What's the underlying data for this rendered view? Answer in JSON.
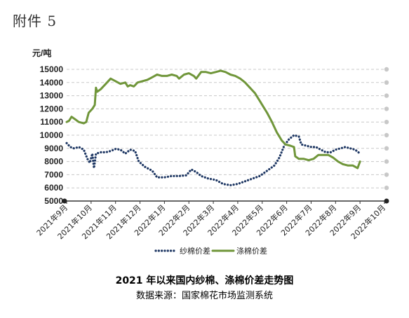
{
  "header": {
    "attachment_label": "附件 5"
  },
  "chart_data": {
    "type": "line",
    "title": "2021 年以来国内纱棉、涤棉价差走势图",
    "source": "数据来源：国家棉花市场监测系统",
    "ylabel": "元/吨",
    "ylim": [
      5000,
      15000
    ],
    "yticks": [
      5000,
      6000,
      7000,
      8000,
      9000,
      10000,
      11000,
      12000,
      13000,
      14000,
      15000
    ],
    "categories": [
      "2021年9月",
      "2021年10月",
      "2021年11月",
      "2021年12月",
      "2022年1月",
      "2022年2月",
      "2022年3月",
      "2022年4月",
      "2022年5月",
      "2022年6月",
      "2022年7月",
      "2022年8月",
      "2022年9月",
      "2022年10月"
    ],
    "grid": true,
    "legend_position": "bottom",
    "series": [
      {
        "name": "纱棉价差",
        "color": "#1f3864",
        "style": "dotted",
        "values": [
          [
            0,
            9400
          ],
          [
            0.15,
            9100
          ],
          [
            0.3,
            9000
          ],
          [
            0.5,
            9100
          ],
          [
            0.7,
            8900
          ],
          [
            0.85,
            8200
          ],
          [
            0.95,
            7900
          ],
          [
            1.05,
            8600
          ],
          [
            1.12,
            7500
          ],
          [
            1.2,
            8600
          ],
          [
            1.4,
            8700
          ],
          [
            1.6,
            8700
          ],
          [
            1.8,
            8800
          ],
          [
            2.0,
            8950
          ],
          [
            2.2,
            8900
          ],
          [
            2.4,
            8600
          ],
          [
            2.6,
            8900
          ],
          [
            2.8,
            8800
          ],
          [
            2.95,
            8000
          ],
          [
            3.2,
            7600
          ],
          [
            3.5,
            7300
          ],
          [
            3.7,
            6800
          ],
          [
            4.0,
            6800
          ],
          [
            4.3,
            6900
          ],
          [
            4.6,
            6900
          ],
          [
            4.9,
            6950
          ],
          [
            5.1,
            7400
          ],
          [
            5.3,
            7200
          ],
          [
            5.5,
            6900
          ],
          [
            5.8,
            6700
          ],
          [
            6.1,
            6600
          ],
          [
            6.4,
            6300
          ],
          [
            6.7,
            6200
          ],
          [
            7.0,
            6300
          ],
          [
            7.3,
            6500
          ],
          [
            7.6,
            6700
          ],
          [
            7.9,
            6900
          ],
          [
            8.2,
            7300
          ],
          [
            8.5,
            7700
          ],
          [
            8.7,
            8300
          ],
          [
            8.9,
            9200
          ],
          [
            9.1,
            9700
          ],
          [
            9.3,
            10000
          ],
          [
            9.5,
            9900
          ],
          [
            9.6,
            9300
          ],
          [
            9.8,
            9200
          ],
          [
            10.0,
            9100
          ],
          [
            10.2,
            9100
          ],
          [
            10.4,
            8900
          ],
          [
            10.6,
            8700
          ],
          [
            10.8,
            8700
          ],
          [
            11.0,
            8900
          ],
          [
            11.2,
            9000
          ],
          [
            11.4,
            9100
          ],
          [
            11.6,
            9000
          ],
          [
            11.8,
            8900
          ],
          [
            12.0,
            8600
          ]
        ]
      },
      {
        "name": "涤棉价差",
        "color": "#70963a",
        "style": "solid",
        "values": [
          [
            0,
            11000
          ],
          [
            0.1,
            11100
          ],
          [
            0.2,
            11400
          ],
          [
            0.35,
            11200
          ],
          [
            0.5,
            11000
          ],
          [
            0.7,
            10900
          ],
          [
            0.8,
            11000
          ],
          [
            0.9,
            11700
          ],
          [
            1.05,
            12000
          ],
          [
            1.15,
            12300
          ],
          [
            1.2,
            13600
          ],
          [
            1.25,
            13300
          ],
          [
            1.4,
            13500
          ],
          [
            1.6,
            13900
          ],
          [
            1.8,
            14300
          ],
          [
            2.0,
            14100
          ],
          [
            2.2,
            13900
          ],
          [
            2.4,
            14000
          ],
          [
            2.5,
            13700
          ],
          [
            2.6,
            13800
          ],
          [
            2.75,
            13700
          ],
          [
            2.9,
            14000
          ],
          [
            3.1,
            14100
          ],
          [
            3.3,
            14200
          ],
          [
            3.5,
            14400
          ],
          [
            3.7,
            14600
          ],
          [
            3.9,
            14500
          ],
          [
            4.1,
            14500
          ],
          [
            4.3,
            14600
          ],
          [
            4.5,
            14500
          ],
          [
            4.6,
            14300
          ],
          [
            4.8,
            14600
          ],
          [
            5.0,
            14700
          ],
          [
            5.2,
            14500
          ],
          [
            5.3,
            14300
          ],
          [
            5.5,
            14800
          ],
          [
            5.7,
            14800
          ],
          [
            5.9,
            14700
          ],
          [
            6.1,
            14800
          ],
          [
            6.3,
            14900
          ],
          [
            6.5,
            14800
          ],
          [
            6.7,
            14600
          ],
          [
            6.9,
            14500
          ],
          [
            7.1,
            14300
          ],
          [
            7.3,
            14000
          ],
          [
            7.5,
            13600
          ],
          [
            7.7,
            13200
          ],
          [
            7.9,
            12600
          ],
          [
            8.0,
            12300
          ],
          [
            8.2,
            11700
          ],
          [
            8.4,
            11000
          ],
          [
            8.6,
            10200
          ],
          [
            8.8,
            9600
          ],
          [
            8.95,
            9300
          ],
          [
            9.15,
            9200
          ],
          [
            9.3,
            9100
          ],
          [
            9.35,
            8400
          ],
          [
            9.5,
            8200
          ],
          [
            9.7,
            8200
          ],
          [
            9.9,
            8100
          ],
          [
            10.1,
            8200
          ],
          [
            10.3,
            8500
          ],
          [
            10.5,
            8500
          ],
          [
            10.7,
            8500
          ],
          [
            10.9,
            8300
          ],
          [
            11.1,
            8000
          ],
          [
            11.3,
            7800
          ],
          [
            11.5,
            7700
          ],
          [
            11.7,
            7700
          ],
          [
            11.9,
            7500
          ],
          [
            12.0,
            8000
          ]
        ]
      }
    ]
  }
}
